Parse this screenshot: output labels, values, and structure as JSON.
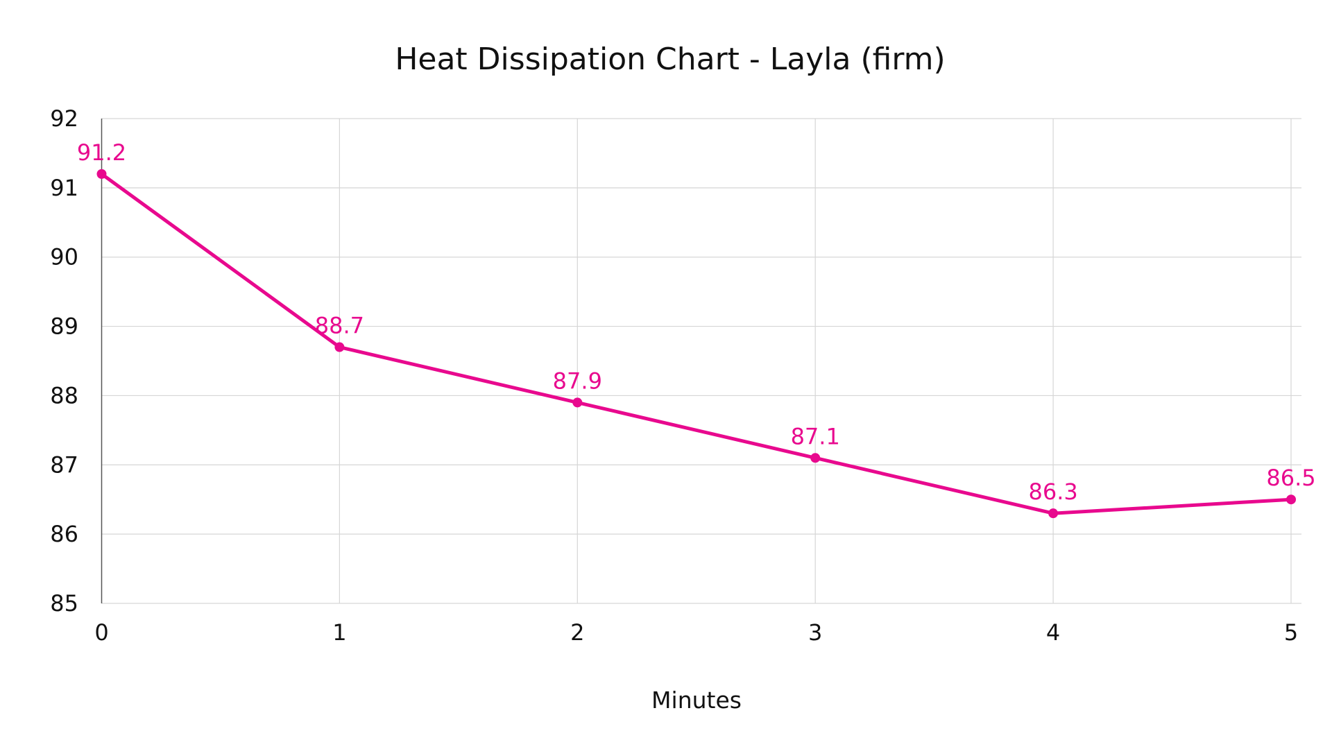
{
  "chart_data": {
    "type": "line",
    "title": "Heat Dissipation Chart - Layla (firm)",
    "xlabel": "Minutes",
    "ylabel": "",
    "x": [
      0,
      1,
      2,
      3,
      4,
      5
    ],
    "series": [
      {
        "name": "Layla (firm)",
        "values": [
          91.2,
          88.7,
          87.9,
          87.1,
          86.3,
          86.5
        ],
        "color": "#e8098e"
      }
    ],
    "value_labels": [
      "91.2",
      "88.7",
      "87.9",
      "87.1",
      "86.3",
      "86.5"
    ],
    "xlim": [
      0,
      5
    ],
    "ylim": [
      85,
      92
    ],
    "x_ticks": [
      "0",
      "1",
      "2",
      "3",
      "4",
      "5"
    ],
    "y_ticks": [
      "85",
      "86",
      "87",
      "88",
      "89",
      "90",
      "91",
      "92"
    ],
    "grid": true,
    "legend": "none"
  }
}
